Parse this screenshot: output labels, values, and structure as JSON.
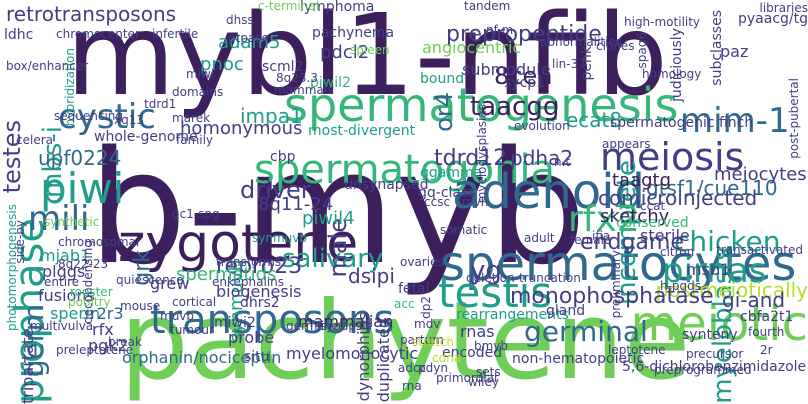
{
  "palette": {
    "dark": "#3e1f5e",
    "indigo": "#433e85",
    "blue": "#31688e",
    "teal": "#1f9e89",
    "green": "#35b779",
    "lime": "#6ece58",
    "yellow": "#b5de2b"
  },
  "words": [
    {
      "text": "mybl1-nfib",
      "color": "dark",
      "vertical": false
    },
    {
      "text": "b-myb",
      "color": "dark",
      "vertical": false
    },
    {
      "text": "pachytene",
      "color": "lime",
      "vertical": false
    },
    {
      "text": "spermatogenesis",
      "color": "green",
      "vertical": false
    },
    {
      "text": "spermatocytes",
      "color": "blue",
      "vertical": false
    },
    {
      "text": "zygotene",
      "color": "dark",
      "vertical": false
    },
    {
      "text": "spermatogonia",
      "color": "green",
      "vertical": false
    },
    {
      "text": "adenoid",
      "color": "blue",
      "vertical": false
    },
    {
      "text": "meiosis",
      "color": "indigo",
      "vertical": false
    },
    {
      "text": "meiotic",
      "color": "lime",
      "vertical": false
    },
    {
      "text": "transposons",
      "color": "blue",
      "vertical": false
    },
    {
      "text": "testis",
      "color": "teal",
      "vertical": false
    },
    {
      "text": "prophase",
      "color": "teal",
      "vertical": true
    },
    {
      "text": "piwi",
      "color": "teal",
      "vertical": false
    },
    {
      "text": "cystic",
      "color": "blue",
      "vertical": false
    },
    {
      "text": "mili",
      "color": "blue",
      "vertical": false
    },
    {
      "text": "pirnas",
      "color": "teal",
      "vertical": false
    },
    {
      "text": "mim-1",
      "color": "blue",
      "vertical": false
    },
    {
      "text": "germ",
      "color": "blue",
      "vertical": true
    },
    {
      "text": "retrotransposons",
      "color": "indigo",
      "vertical": false
    },
    {
      "text": "prepropeptide",
      "color": "indigo",
      "vertical": false
    },
    {
      "text": "testes",
      "color": "indigo",
      "vertical": true
    },
    {
      "text": "mbs-i",
      "color": "teal",
      "vertical": true
    },
    {
      "text": "incomplete",
      "color": "teal",
      "vertical": true
    },
    {
      "text": "myeloblasts",
      "color": "teal",
      "vertical": true
    },
    {
      "text": "rfx2",
      "color": "green",
      "vertical": false
    },
    {
      "text": "germinal",
      "color": "blue",
      "vertical": false
    },
    {
      "text": "chicken",
      "color": "teal",
      "vertical": false
    },
    {
      "text": "salivary",
      "color": "teal",
      "vertical": false
    },
    {
      "text": "postmeiotically",
      "color": "yellow",
      "vertical": false
    },
    {
      "text": "monophosphatase",
      "color": "indigo",
      "vertical": false
    },
    {
      "text": "8cen",
      "color": "dark",
      "vertical": false
    },
    {
      "text": "taacgg",
      "color": "dark",
      "vertical": false
    },
    {
      "text": "tdrd12",
      "color": "indigo",
      "vertical": false
    },
    {
      "text": "endgame",
      "color": "indigo",
      "vertical": false
    },
    {
      "text": "impa1",
      "color": "teal",
      "vertical": false
    },
    {
      "text": "driver",
      "color": "indigo",
      "vertical": false
    },
    {
      "text": "upf0224",
      "color": "blue",
      "vertical": false
    },
    {
      "text": "ecat8",
      "color": "teal",
      "vertical": false
    },
    {
      "text": "pdha2",
      "color": "indigo",
      "vertical": false
    },
    {
      "text": "gtsf1/cue110",
      "color": "blue",
      "vertical": false
    },
    {
      "text": "comicroinjected",
      "color": "indigo",
      "vertical": false
    },
    {
      "text": "repro23",
      "color": "indigo",
      "vertical": false
    },
    {
      "text": "spermatids",
      "color": "green",
      "vertical": false
    },
    {
      "text": "dsipi",
      "color": "indigo",
      "vertical": false
    },
    {
      "text": "gi-and",
      "color": "indigo",
      "vertical": false
    },
    {
      "text": "male",
      "color": "indigo",
      "vertical": true
    },
    {
      "text": "or4",
      "color": "blue",
      "vertical": true
    },
    {
      "text": "pnoc",
      "color": "teal",
      "vertical": false
    },
    {
      "text": "adam5",
      "color": "teal",
      "vertical": false
    },
    {
      "text": "pdcl2",
      "color": "indigo",
      "vertical": false
    },
    {
      "text": "homonymous",
      "color": "indigo",
      "vertical": false
    },
    {
      "text": "piwil4",
      "color": "teal",
      "vertical": false
    },
    {
      "text": "8q11-24",
      "color": "indigo",
      "vertical": false
    },
    {
      "text": "synmuvb",
      "color": "teal",
      "vertical": true
    },
    {
      "text": "grk",
      "color": "blue",
      "vertical": true
    },
    {
      "text": "plggs",
      "color": "indigo",
      "vertical": false
    },
    {
      "text": "mjab1",
      "color": "teal",
      "vertical": false
    },
    {
      "text": "fusions",
      "color": "indigo",
      "vertical": false
    },
    {
      "text": "sperm",
      "color": "teal",
      "vertical": false
    },
    {
      "text": "rfx",
      "color": "indigo",
      "vertical": false
    },
    {
      "text": "pgk2",
      "color": "indigo",
      "vertical": false
    },
    {
      "text": "r2r3",
      "color": "blue",
      "vertical": false
    },
    {
      "text": "yg",
      "color": "indigo",
      "vertical": false
    },
    {
      "text": "sketchy",
      "color": "dark",
      "vertical": false
    },
    {
      "text": "taagtg",
      "color": "dark",
      "vertical": false
    },
    {
      "text": "meiocytes",
      "color": "indigo",
      "vertical": false
    },
    {
      "text": "sterile",
      "color": "indigo",
      "vertical": false
    },
    {
      "text": "msb1",
      "color": "indigo",
      "vertical": false
    },
    {
      "text": "mammalian",
      "color": "dark",
      "vertical": false
    },
    {
      "text": "orphanin/nociceptin",
      "color": "blue",
      "vertical": false
    },
    {
      "text": "myelomonocytic",
      "color": "indigo",
      "vertical": false
    },
    {
      "text": "non-hematopoietic",
      "color": "indigo",
      "vertical": false
    },
    {
      "text": "5,6-dichlorobenzimidazole",
      "color": "indigo",
      "vertical": false
    },
    {
      "text": "lymphoma",
      "color": "indigo",
      "vertical": false
    },
    {
      "text": "pachynema",
      "color": "indigo",
      "vertical": false
    },
    {
      "text": "angiocentric",
      "color": "lime",
      "vertical": false
    },
    {
      "text": "submodule",
      "color": "indigo",
      "vertical": false
    },
    {
      "text": "sycp1",
      "color": "indigo",
      "vertical": false
    },
    {
      "text": "bound",
      "color": "teal",
      "vertical": false
    },
    {
      "text": "spermatogenic finch",
      "color": "indigo",
      "vertical": false
    },
    {
      "text": "synteny",
      "color": "indigo",
      "vertical": false
    },
    {
      "text": "tripartate",
      "color": "indigo",
      "vertical": true
    },
    {
      "text": "grew",
      "color": "indigo",
      "vertical": false
    },
    {
      "text": "biogenesis",
      "color": "indigo",
      "vertical": false
    },
    {
      "text": "probe",
      "color": "indigo",
      "vertical": false
    },
    {
      "text": "situ",
      "color": "indigo",
      "vertical": false
    },
    {
      "text": "rnas",
      "color": "indigo",
      "vertical": false
    },
    {
      "text": "bmyb",
      "color": "indigo",
      "vertical": false
    },
    {
      "text": "encoded",
      "color": "indigo",
      "vertical": false
    },
    {
      "text": "duplicated",
      "color": "indigo",
      "vertical": true
    },
    {
      "text": "dynorphins",
      "color": "indigo",
      "vertical": true
    },
    {
      "text": "rearrangements",
      "color": "teal",
      "vertical": false
    },
    {
      "text": "cbfa2t1",
      "color": "indigo",
      "vertical": false
    },
    {
      "text": "gland",
      "color": "indigo",
      "vertical": false
    },
    {
      "text": "dhrs2",
      "color": "indigo",
      "vertical": false
    },
    {
      "text": "miwi2",
      "color": "indigo",
      "vertical": false
    },
    {
      "text": "synmuvb",
      "color": "teal",
      "vertical": false
    },
    {
      "text": "conserved",
      "color": "green",
      "vertical": false
    },
    {
      "text": "ggamma",
      "color": "teal",
      "vertical": false
    },
    {
      "text": "gq-class",
      "color": "indigo",
      "vertical": false
    },
    {
      "text": "most-divergent",
      "color": "teal",
      "vertical": false
    },
    {
      "text": "unsynapsed",
      "color": "indigo",
      "vertical": false
    },
    {
      "text": "scml2",
      "color": "indigo",
      "vertical": false
    },
    {
      "text": "piwil2",
      "color": "green",
      "vertical": false
    },
    {
      "text": "cbp",
      "color": "indigo",
      "vertical": false
    },
    {
      "text": "miwi",
      "color": "indigo",
      "vertical": false
    },
    {
      "text": "tdrd1",
      "color": "indigo",
      "vertical": false
    },
    {
      "text": "whole-genome",
      "color": "indigo",
      "vertical": false
    },
    {
      "text": "celera",
      "color": "indigo",
      "vertical": false
    },
    {
      "text": "xq13",
      "color": "indigo",
      "vertical": false
    },
    {
      "text": "ldhc",
      "color": "indigo",
      "vertical": false
    },
    {
      "text": "chromocenter",
      "color": "indigo",
      "vertical": false
    },
    {
      "text": "infertile",
      "color": "indigo",
      "vertical": false
    },
    {
      "text": "hybridization",
      "color": "teal",
      "vertical": true
    },
    {
      "text": "decondensing",
      "color": "indigo",
      "vertical": true
    },
    {
      "text": "homology",
      "color": "indigo",
      "vertical": false
    },
    {
      "text": "paz",
      "color": "indigo",
      "vertical": false
    },
    {
      "text": "pyaacg/tg",
      "color": "indigo",
      "vertical": false
    },
    {
      "text": "subclasses",
      "color": "indigo",
      "vertical": true
    },
    {
      "text": "judiciously",
      "color": "indigo",
      "vertical": true
    },
    {
      "text": "spag6",
      "color": "indigo",
      "vertical": true
    },
    {
      "text": "penk",
      "color": "indigo",
      "vertical": true
    },
    {
      "text": "lin-37",
      "color": "indigo",
      "vertical": false
    },
    {
      "text": "clones",
      "color": "indigo",
      "vertical": false
    },
    {
      "text": "citron",
      "color": "indigo",
      "vertical": false
    },
    {
      "text": "h-pgds",
      "color": "indigo",
      "vertical": false
    },
    {
      "text": "ccat",
      "color": "indigo",
      "vertical": false
    },
    {
      "text": "female",
      "color": "indigo",
      "vertical": false
    },
    {
      "text": "leptotene",
      "color": "indigo",
      "vertical": false
    },
    {
      "text": "precursor",
      "color": "indigo",
      "vertical": false
    },
    {
      "text": "preprogrammed",
      "color": "indigo",
      "vertical": false
    },
    {
      "text": "fourth",
      "color": "indigo",
      "vertical": false
    },
    {
      "text": "2r",
      "color": "indigo",
      "vertical": false
    },
    {
      "text": "transactivated",
      "color": "indigo",
      "vertical": false
    },
    {
      "text": "post-pubertal",
      "color": "indigo",
      "vertical": true
    },
    {
      "text": "libraries",
      "color": "indigo",
      "vertical": false
    },
    {
      "text": "high-motility",
      "color": "indigo",
      "vertical": false
    },
    {
      "text": "dhss",
      "color": "indigo",
      "vertical": false
    },
    {
      "text": "gtpase",
      "color": "indigo",
      "vertical": false
    },
    {
      "text": "8q23.3",
      "color": "indigo",
      "vertical": false
    },
    {
      "text": "mammals",
      "color": "indigo",
      "vertical": false
    },
    {
      "text": "domains",
      "color": "indigo",
      "vertical": false
    },
    {
      "text": "marek",
      "color": "indigo",
      "vertical": false
    },
    {
      "text": "family",
      "color": "indigo",
      "vertical": false
    },
    {
      "text": "sequencing",
      "color": "indigo",
      "vertical": false
    },
    {
      "text": "box/enhancer",
      "color": "indigo",
      "vertical": false
    },
    {
      "text": "photomorphogenesis",
      "color": "teal",
      "vertical": true
    },
    {
      "text": "side-by",
      "color": "indigo",
      "vertical": true
    },
    {
      "text": "synthetic",
      "color": "lime",
      "vertical": false
    },
    {
      "text": "chromosomal",
      "color": "indigo",
      "vertical": false
    },
    {
      "text": "8q22-23",
      "color": "indigo",
      "vertical": false
    },
    {
      "text": "entire",
      "color": "indigo",
      "vertical": false
    },
    {
      "text": "rooster",
      "color": "green",
      "vertical": false
    },
    {
      "text": "poultry",
      "color": "lime",
      "vertical": false
    },
    {
      "text": "quiescence",
      "color": "indigo",
      "vertical": false
    },
    {
      "text": "enkephalins",
      "color": "indigo",
      "vertical": false
    },
    {
      "text": "transforms",
      "color": "indigo",
      "vertical": false
    },
    {
      "text": "gc1-spg",
      "color": "indigo",
      "vertical": false
    },
    {
      "text": "fetal",
      "color": "indigo",
      "vertical": false
    },
    {
      "text": "acc",
      "color": "green",
      "vertical": false
    },
    {
      "text": "ovaries",
      "color": "indigo",
      "vertical": false
    },
    {
      "text": "dp2",
      "color": "indigo",
      "vertical": true
    },
    {
      "text": "germline",
      "color": "indigo",
      "vertical": false
    },
    {
      "text": "synapsis",
      "color": "indigo",
      "vertical": false
    },
    {
      "text": "partum",
      "color": "indigo",
      "vertical": false
    },
    {
      "text": "stretch",
      "color": "yellow",
      "vertical": false
    },
    {
      "text": "deletion-truncation",
      "color": "indigo",
      "vertical": false
    },
    {
      "text": "mdv",
      "color": "indigo",
      "vertical": false
    },
    {
      "text": "pdyn",
      "color": "indigo",
      "vertical": false
    },
    {
      "text": "adcc",
      "color": "indigo",
      "vertical": false
    },
    {
      "text": "primordial",
      "color": "indigo",
      "vertical": false
    },
    {
      "text": "cdna",
      "color": "yellow",
      "vertical": false
    },
    {
      "text": "wiley",
      "color": "indigo",
      "vertical": false
    },
    {
      "text": "rna",
      "color": "indigo",
      "vertical": false
    },
    {
      "text": "ccsc",
      "color": "indigo",
      "vertical": false
    },
    {
      "text": "mvh",
      "color": "indigo",
      "vertical": false
    },
    {
      "text": "somatic",
      "color": "indigo",
      "vertical": false
    },
    {
      "text": "adult",
      "color": "indigo",
      "vertical": false
    },
    {
      "text": "tandem",
      "color": "indigo",
      "vertical": false
    },
    {
      "text": "nf-m",
      "color": "indigo",
      "vertical": false
    },
    {
      "text": "abnormalities",
      "color": "indigo",
      "vertical": false
    },
    {
      "text": "myelodysplasias",
      "color": "indigo",
      "vertical": true
    },
    {
      "text": "evolution",
      "color": "indigo",
      "vertical": false
    },
    {
      "text": "appears",
      "color": "indigo",
      "vertical": false
    },
    {
      "text": "ifia",
      "color": "indigo",
      "vertical": false
    },
    {
      "text": "preliminary",
      "color": "indigo",
      "vertical": true
    },
    {
      "text": "c-terminal",
      "color": "lime",
      "vertical": false
    },
    {
      "text": "spleen",
      "color": "lime",
      "vertical": false
    },
    {
      "text": "n.t",
      "color": "indigo",
      "vertical": false
    },
    {
      "text": "break",
      "color": "indigo",
      "vertical": false
    },
    {
      "text": "sets",
      "color": "indigo",
      "vertical": false
    },
    {
      "text": "preleptotene",
      "color": "indigo",
      "vertical": false
    },
    {
      "text": "multivulva",
      "color": "indigo",
      "vertical": false
    },
    {
      "text": "mouse",
      "color": "indigo",
      "vertical": false
    },
    {
      "text": "cortical",
      "color": "indigo",
      "vertical": false
    },
    {
      "text": "muvb",
      "color": "indigo",
      "vertical": false
    },
    {
      "text": "tumour",
      "color": "indigo",
      "vertical": false
    }
  ]
}
